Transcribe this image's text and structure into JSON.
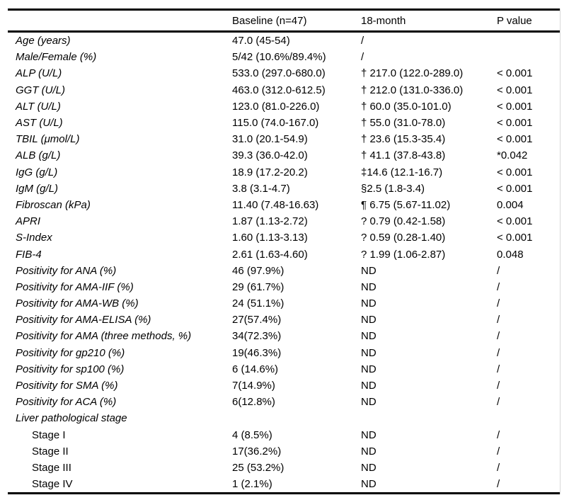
{
  "table": {
    "columns": [
      "",
      "Baseline (n=47)",
      "18-month",
      "P value"
    ],
    "rows": [
      {
        "label": "Age (years)",
        "baseline": "47.0 (45-54)",
        "month": "/",
        "p": "",
        "indent": false
      },
      {
        "label": "Male/Female (%)",
        "baseline": "5/42 (10.6%/89.4%)",
        "month": "/",
        "p": "",
        "indent": false
      },
      {
        "label": "ALP (U/L)",
        "baseline": "533.0 (297.0-680.0)",
        "month": "† 217.0 (122.0-289.0)",
        "p": "< 0.001",
        "indent": false
      },
      {
        "label": "GGT (U/L)",
        "baseline": "463.0 (312.0-612.5)",
        "month": "† 212.0 (131.0-336.0)",
        "p": "< 0.001",
        "indent": false
      },
      {
        "label": "ALT (U/L)",
        "baseline": "123.0 (81.0-226.0)",
        "month": "† 60.0 (35.0-101.0)",
        "p": "< 0.001",
        "indent": false
      },
      {
        "label": "AST (U/L)",
        "baseline": "115.0 (74.0-167.0)",
        "month": "† 55.0 (31.0-78.0)",
        "p": "< 0.001",
        "indent": false
      },
      {
        "label": "TBIL (μmol/L)",
        "baseline": "31.0 (20.1-54.9)",
        "month": "† 23.6 (15.3-35.4)",
        "p": "< 0.001",
        "indent": false
      },
      {
        "label": "ALB (g/L)",
        "baseline": "39.3 (36.0-42.0)",
        "month": "† 41.1 (37.8-43.8)",
        "p": "*0.042",
        "indent": false
      },
      {
        "label": "IgG (g/L)",
        "baseline": "18.9 (17.2-20.2)",
        "month": "‡14.6 (12.1-16.7)",
        "p": "< 0.001",
        "indent": false
      },
      {
        "label": "IgM (g/L)",
        "baseline": "3.8 (3.1-4.7)",
        "month": "§2.5 (1.8-3.4)",
        "p": "< 0.001",
        "indent": false
      },
      {
        "label": "Fibroscan (kPa)",
        "baseline": "11.40 (7.48-16.63)",
        "month": "¶ 6.75 (5.67-11.02)",
        "p": "0.004",
        "indent": false
      },
      {
        "label": "APRI",
        "baseline": "1.87 (1.13-2.72)",
        "month": "? 0.79 (0.42-1.58)",
        "p": "< 0.001",
        "indent": false
      },
      {
        "label": "S-Index",
        "baseline": "1.60 (1.13-3.13)",
        "month": "? 0.59 (0.28-1.40)",
        "p": "< 0.001",
        "indent": false
      },
      {
        "label": "FIB-4",
        "baseline": "2.61 (1.63-4.60)",
        "month": "? 1.99 (1.06-2.87)",
        "p": "0.048",
        "indent": false
      },
      {
        "label": "Positivity for ANA (%)",
        "baseline": "46 (97.9%)",
        "month": "ND",
        "p": "/",
        "indent": false
      },
      {
        "label": "Positivity for AMA-IIF (%)",
        "baseline": "29 (61.7%)",
        "month": "ND",
        "p": "/",
        "indent": false
      },
      {
        "label": "Positivity for AMA-WB (%)",
        "baseline": "24 (51.1%)",
        "month": "ND",
        "p": "/",
        "indent": false
      },
      {
        "label": "Positivity for AMA-ELISA (%)",
        "baseline": "27(57.4%)",
        "month": "ND",
        "p": "/",
        "indent": false
      },
      {
        "label": "Positivity for AMA (three methods, %)",
        "baseline": "34(72.3%)",
        "month": "ND",
        "p": "/",
        "indent": false
      },
      {
        "label": "Positivity for gp210 (%)",
        "baseline": "19(46.3%)",
        "month": "ND",
        "p": "/",
        "indent": false
      },
      {
        "label": "Positivity for sp100 (%)",
        "baseline": "6 (14.6%)",
        "month": "ND",
        "p": "/",
        "indent": false
      },
      {
        "label": "Positivity for SMA (%)",
        "baseline": "7(14.9%)",
        "month": "ND",
        "p": "/",
        "indent": false
      },
      {
        "label": "Positivity for ACA (%)",
        "baseline": "6(12.8%)",
        "month": "ND",
        "p": "/",
        "indent": false
      },
      {
        "label": "Liver pathological stage",
        "baseline": "",
        "month": "",
        "p": "",
        "indent": false
      },
      {
        "label": "Stage I",
        "baseline": "4 (8.5%)",
        "month": "ND",
        "p": "/",
        "indent": true
      },
      {
        "label": "Stage II",
        "baseline": "17(36.2%)",
        "month": "ND",
        "p": "/",
        "indent": true
      },
      {
        "label": "Stage III",
        "baseline": "25 (53.2%)",
        "month": "ND",
        "p": "/",
        "indent": true
      },
      {
        "label": "Stage IV",
        "baseline": "1 (2.1%)",
        "month": "ND",
        "p": "/",
        "indent": true
      }
    ]
  },
  "colors": {
    "text": "#000000",
    "rule": "#000000",
    "background": "#ffffff",
    "edge_line": "#d9d9d9"
  }
}
